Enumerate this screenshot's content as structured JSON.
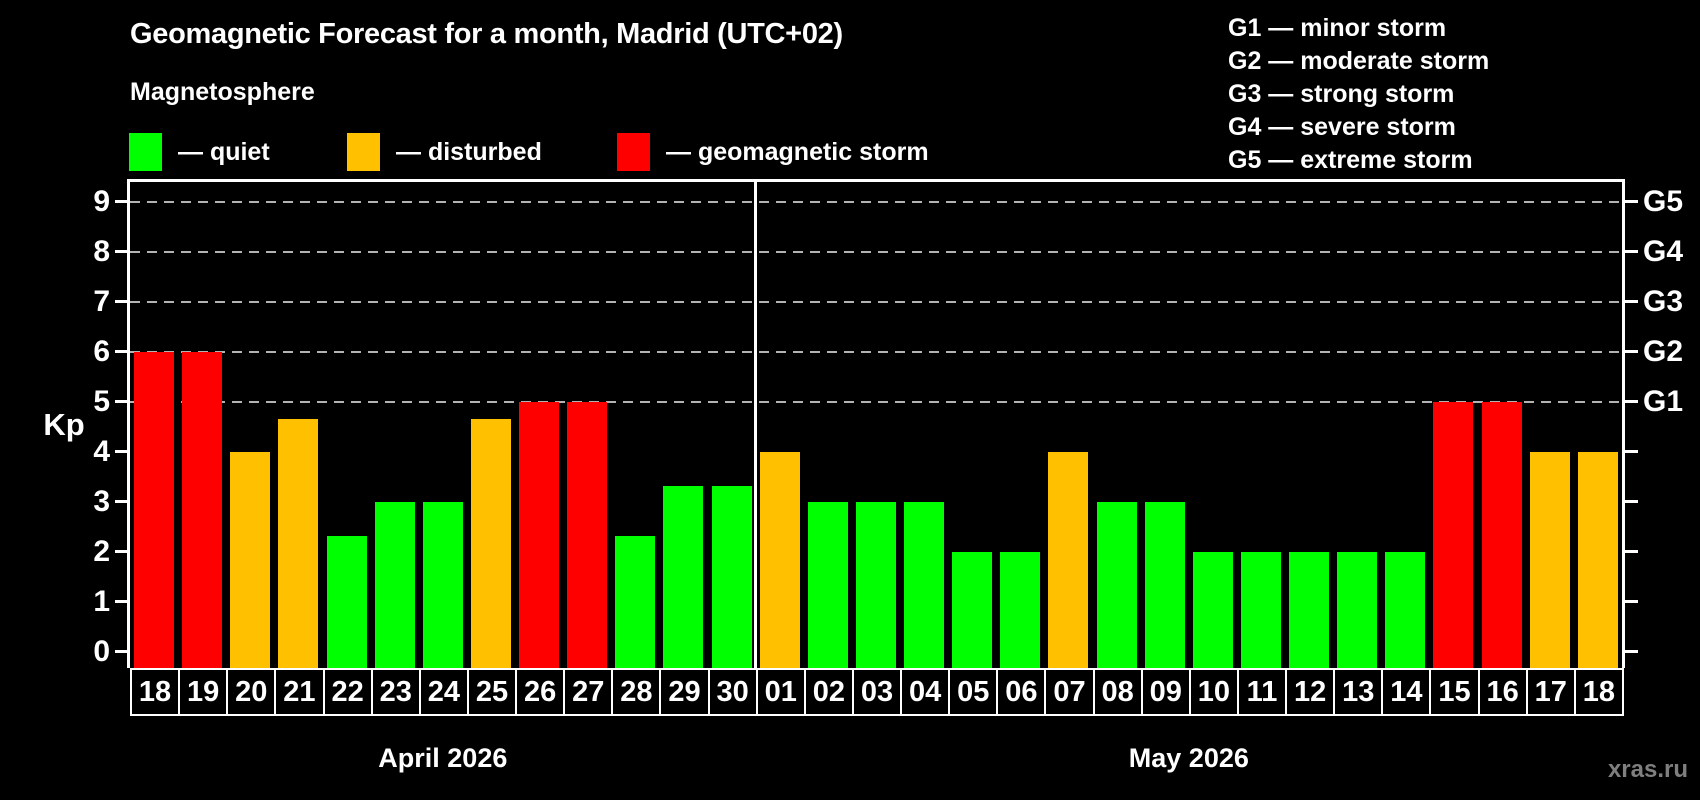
{
  "title": "Geomagnetic Forecast for a month, Madrid (UTC+02)",
  "subtitle": "Magnetosphere",
  "legend": {
    "items": [
      {
        "key": "quiet",
        "label": "— quiet",
        "color": "#00ff00"
      },
      {
        "key": "disturbed",
        "label": "— disturbed",
        "color": "#ffc000"
      },
      {
        "key": "storm",
        "label": "— geomagnetic storm",
        "color": "#ff0000"
      }
    ]
  },
  "storm_scale": [
    "G1 — minor storm",
    "G2 — moderate storm",
    "G3 — strong storm",
    "G4 — severe storm",
    "G5 — extreme storm"
  ],
  "watermark": "xras.ru",
  "colors": {
    "quiet": "#00ff00",
    "disturbed": "#ffc000",
    "storm": "#ff0000",
    "background": "#000000",
    "axis": "#ffffff",
    "grid": "#b3b3b3",
    "watermark": "#7f7f7f"
  },
  "chart_data": {
    "type": "bar",
    "ylabel": "Kp",
    "ylim": [
      0,
      9.4
    ],
    "y_ticks": [
      0,
      1,
      2,
      3,
      4,
      5,
      6,
      7,
      8,
      9
    ],
    "gridlines_kp": [
      5,
      6,
      7,
      8,
      9
    ],
    "grid": "dashed",
    "legend_position": "top-left",
    "right_axis": [
      {
        "kp": 5,
        "label": "G1"
      },
      {
        "kp": 6,
        "label": "G2"
      },
      {
        "kp": 7,
        "label": "G3"
      },
      {
        "kp": 8,
        "label": "G4"
      },
      {
        "kp": 9,
        "label": "G5"
      }
    ],
    "months": [
      {
        "label": "April 2026",
        "days": [
          {
            "day": "18",
            "kp": 6,
            "level": "storm"
          },
          {
            "day": "19",
            "kp": 6,
            "level": "storm"
          },
          {
            "day": "20",
            "kp": 4,
            "level": "disturbed"
          },
          {
            "day": "21",
            "kp": 4.67,
            "level": "disturbed"
          },
          {
            "day": "22",
            "kp": 2.33,
            "level": "quiet"
          },
          {
            "day": "23",
            "kp": 3,
            "level": "quiet"
          },
          {
            "day": "24",
            "kp": 3,
            "level": "quiet"
          },
          {
            "day": "25",
            "kp": 4.67,
            "level": "disturbed"
          },
          {
            "day": "26",
            "kp": 5,
            "level": "storm"
          },
          {
            "day": "27",
            "kp": 5,
            "level": "storm"
          },
          {
            "day": "28",
            "kp": 2.33,
            "level": "quiet"
          },
          {
            "day": "29",
            "kp": 3.33,
            "level": "quiet"
          },
          {
            "day": "30",
            "kp": 3.33,
            "level": "quiet"
          }
        ]
      },
      {
        "label": "May 2026",
        "days": [
          {
            "day": "01",
            "kp": 4,
            "level": "disturbed"
          },
          {
            "day": "02",
            "kp": 3,
            "level": "quiet"
          },
          {
            "day": "03",
            "kp": 3,
            "level": "quiet"
          },
          {
            "day": "04",
            "kp": 3,
            "level": "quiet"
          },
          {
            "day": "05",
            "kp": 2,
            "level": "quiet"
          },
          {
            "day": "06",
            "kp": 2,
            "level": "quiet"
          },
          {
            "day": "07",
            "kp": 4,
            "level": "disturbed"
          },
          {
            "day": "08",
            "kp": 3,
            "level": "quiet"
          },
          {
            "day": "09",
            "kp": 3,
            "level": "quiet"
          },
          {
            "day": "10",
            "kp": 2,
            "level": "quiet"
          },
          {
            "day": "11",
            "kp": 2,
            "level": "quiet"
          },
          {
            "day": "12",
            "kp": 2,
            "level": "quiet"
          },
          {
            "day": "13",
            "kp": 2,
            "level": "quiet"
          },
          {
            "day": "14",
            "kp": 2,
            "level": "quiet"
          },
          {
            "day": "15",
            "kp": 5,
            "level": "storm"
          },
          {
            "day": "16",
            "kp": 5,
            "level": "storm"
          },
          {
            "day": "17",
            "kp": 4,
            "level": "disturbed"
          },
          {
            "day": "18",
            "kp": 4,
            "level": "disturbed"
          }
        ]
      }
    ]
  }
}
